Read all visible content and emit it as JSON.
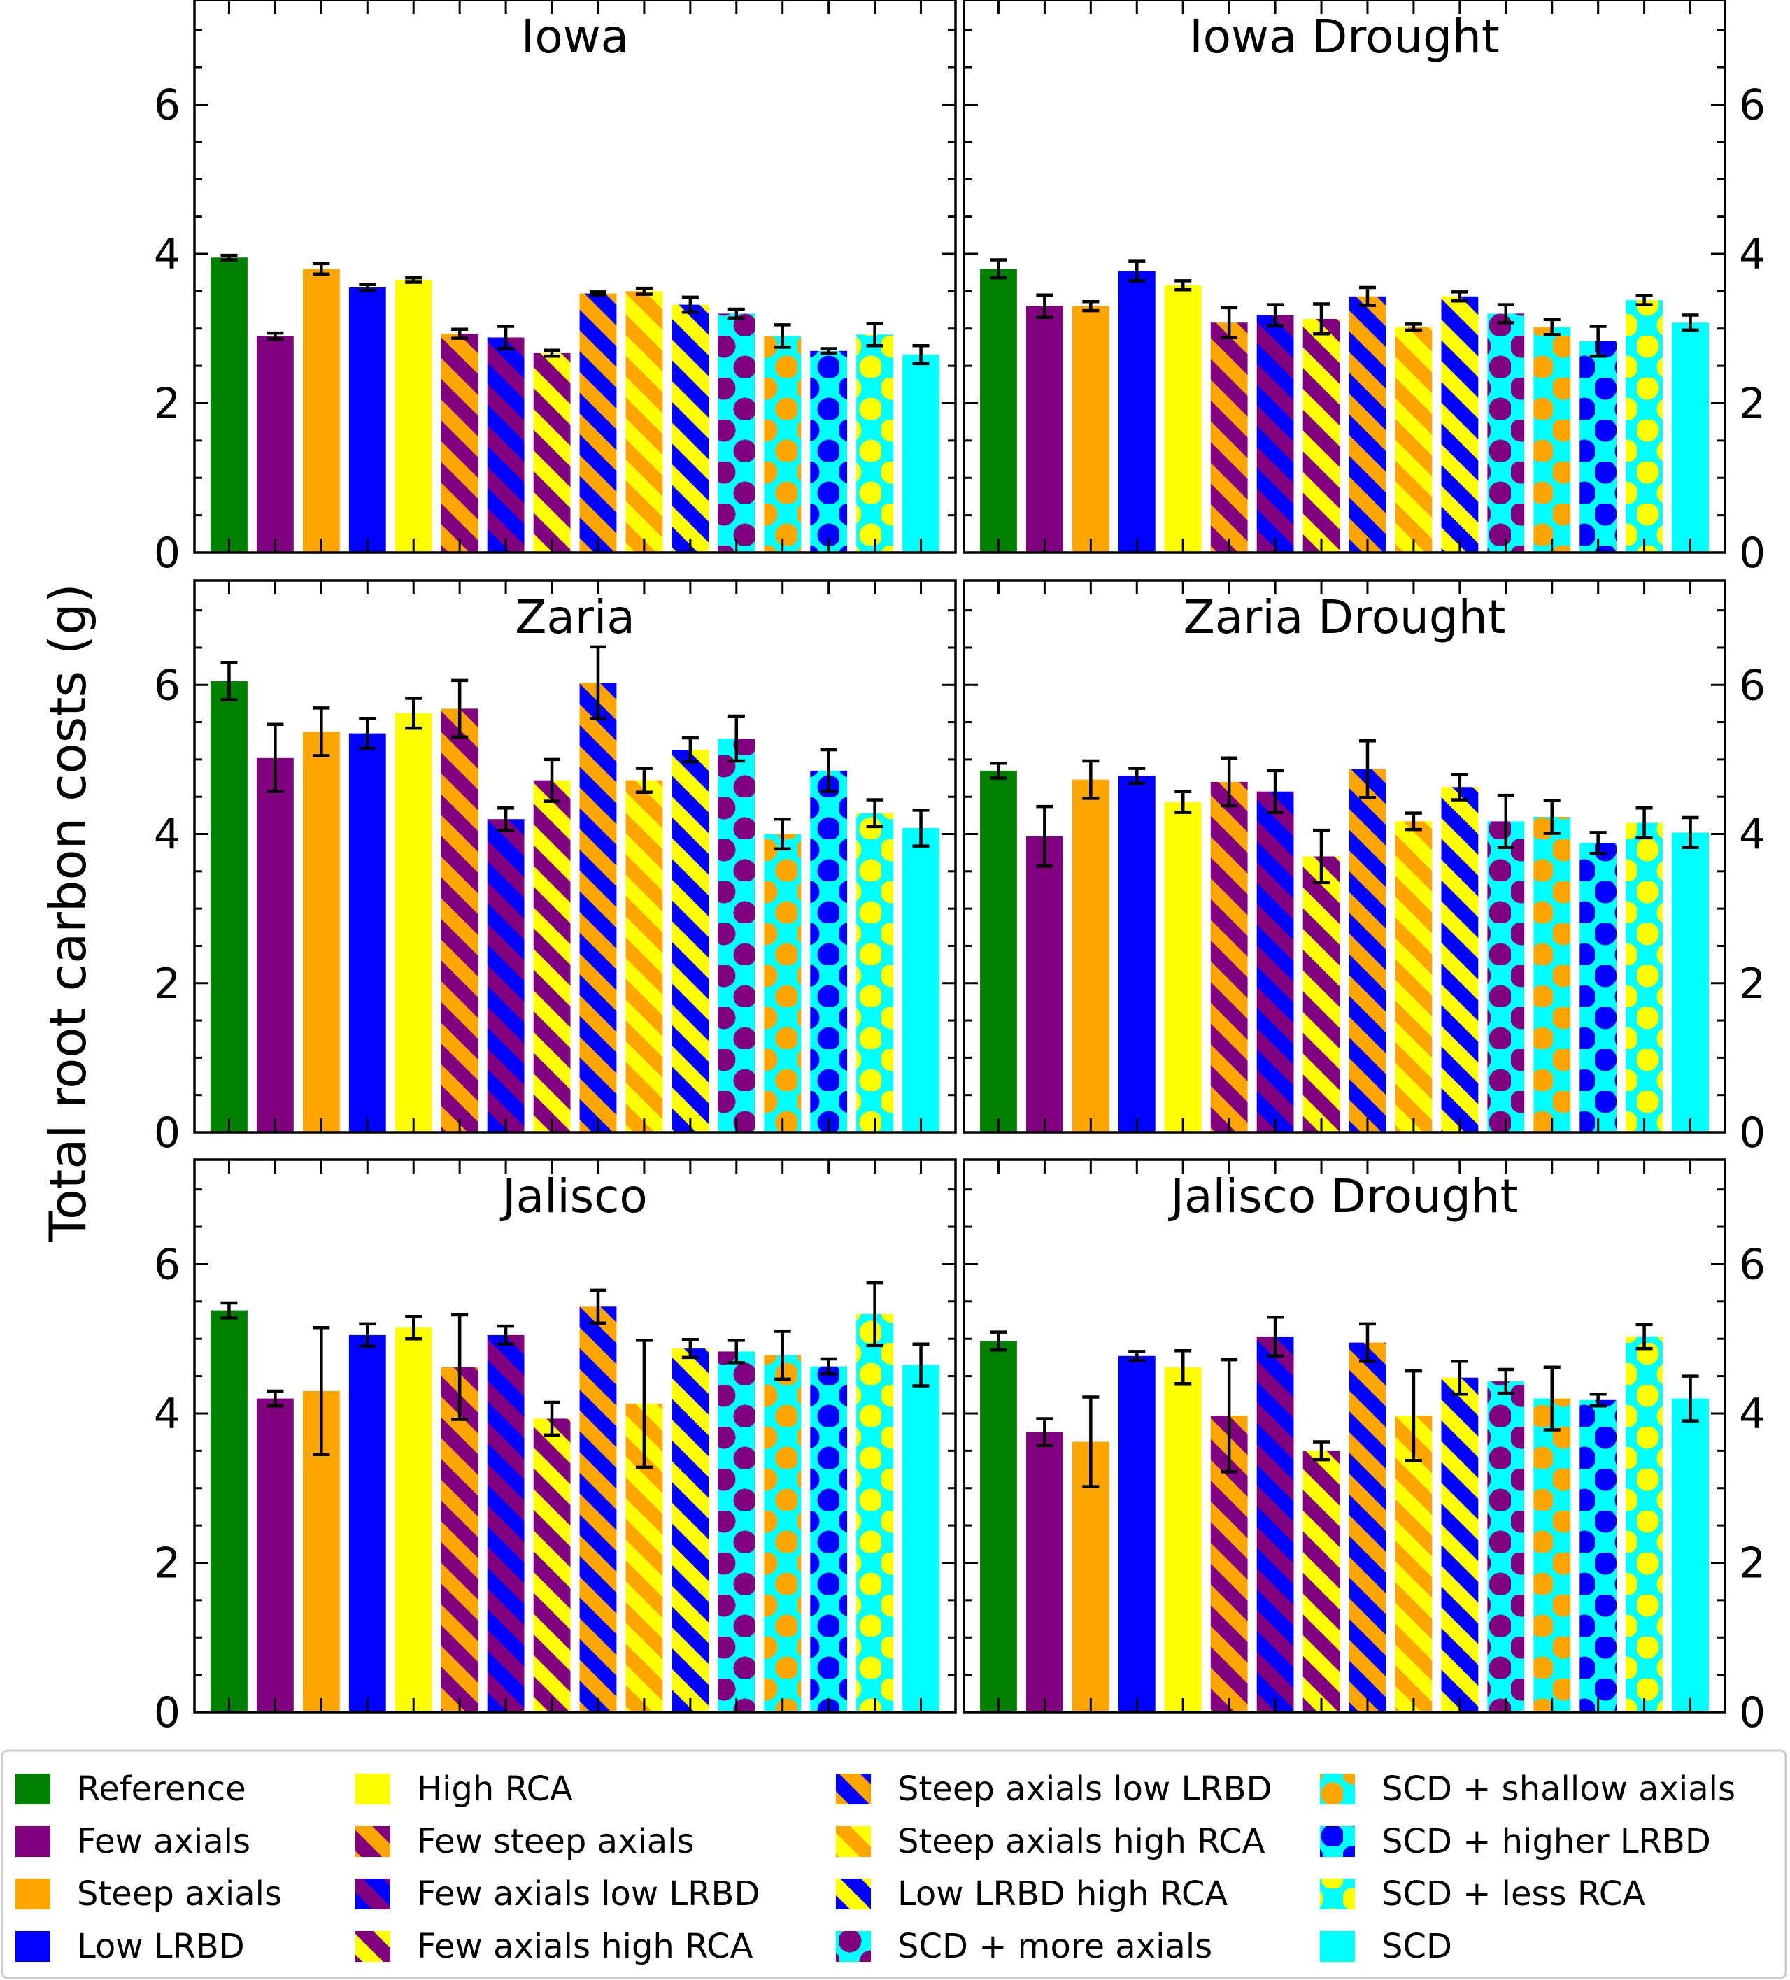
{
  "chart_data": {
    "type": "bar",
    "ylabel": "Total root carbon costs (g)",
    "ylim": [
      0,
      7.4
    ],
    "yticks": [
      0,
      2,
      4,
      6
    ],
    "legend_location": "bottom",
    "categories": [
      "Reference",
      "Few axials",
      "Steep axials",
      "Low LRBD",
      "High RCA",
      "Few steep axials",
      "Few axials low LRBD",
      "Few axials high RCA",
      "Steep axials low LRBD",
      "Steep axials high RCA",
      "Low LRBD high RCA",
      "SCD + more axials",
      "SCD + shallow axials",
      "SCD + higher LRBD",
      "SCD + less RCA",
      "SCD"
    ],
    "panels": [
      {
        "title": "Iowa",
        "values": [
          3.95,
          2.9,
          3.8,
          3.55,
          3.65,
          2.93,
          2.88,
          2.67,
          3.47,
          3.5,
          3.32,
          3.2,
          2.9,
          2.7,
          2.92,
          2.65
        ],
        "errors": [
          0.03,
          0.04,
          0.07,
          0.04,
          0.03,
          0.06,
          0.15,
          0.04,
          0.02,
          0.04,
          0.1,
          0.06,
          0.15,
          0.03,
          0.15,
          0.12
        ]
      },
      {
        "title": "Iowa Drought",
        "values": [
          3.8,
          3.3,
          3.3,
          3.77,
          3.58,
          3.08,
          3.18,
          3.13,
          3.43,
          3.02,
          3.43,
          3.2,
          3.02,
          2.83,
          3.38,
          3.08
        ],
        "errors": [
          0.12,
          0.15,
          0.06,
          0.13,
          0.06,
          0.2,
          0.14,
          0.2,
          0.12,
          0.04,
          0.06,
          0.12,
          0.1,
          0.2,
          0.06,
          0.1
        ]
      },
      {
        "title": "Zaria",
        "values": [
          6.05,
          5.02,
          5.37,
          5.35,
          5.62,
          5.68,
          4.2,
          4.72,
          6.03,
          4.72,
          5.13,
          5.28,
          4.0,
          4.85,
          4.28,
          4.08
        ],
        "errors": [
          0.25,
          0.45,
          0.32,
          0.2,
          0.2,
          0.38,
          0.15,
          0.28,
          0.48,
          0.16,
          0.16,
          0.3,
          0.2,
          0.28,
          0.18,
          0.24
        ]
      },
      {
        "title": "Zaria Drought",
        "values": [
          4.85,
          3.97,
          4.73,
          4.78,
          4.43,
          4.7,
          4.57,
          3.7,
          4.87,
          4.17,
          4.63,
          4.17,
          4.23,
          3.88,
          4.15,
          4.02
        ],
        "errors": [
          0.1,
          0.4,
          0.25,
          0.1,
          0.14,
          0.32,
          0.28,
          0.35,
          0.38,
          0.11,
          0.17,
          0.35,
          0.22,
          0.14,
          0.2,
          0.2
        ]
      },
      {
        "title": "Jalisco",
        "values": [
          5.38,
          4.2,
          4.3,
          5.05,
          5.15,
          4.62,
          5.05,
          3.93,
          5.43,
          4.13,
          4.87,
          4.83,
          4.78,
          4.63,
          5.33,
          4.65
        ],
        "errors": [
          0.1,
          0.1,
          0.85,
          0.15,
          0.15,
          0.7,
          0.12,
          0.22,
          0.22,
          0.85,
          0.12,
          0.15,
          0.32,
          0.1,
          0.42,
          0.28
        ]
      },
      {
        "title": "Jalisco Drought",
        "values": [
          4.97,
          3.75,
          3.62,
          4.77,
          4.62,
          3.97,
          5.03,
          3.5,
          4.95,
          3.97,
          4.48,
          4.43,
          4.2,
          4.18,
          5.03,
          4.2
        ],
        "errors": [
          0.12,
          0.18,
          0.6,
          0.06,
          0.22,
          0.75,
          0.26,
          0.12,
          0.25,
          0.6,
          0.22,
          0.16,
          0.42,
          0.08,
          0.16,
          0.3
        ]
      }
    ],
    "legend": [
      "Reference",
      "Few axials",
      "Steep axials",
      "Low LRBD",
      "High RCA",
      "Few steep axials",
      "Few axials low LRBD",
      "Few axials high RCA",
      "Steep axials low LRBD",
      "Steep axials high RCA",
      "Low LRBD high RCA",
      "SCD + more axials",
      "SCD + shallow axials",
      "SCD + higher LRBD",
      "SCD + less RCA",
      "SCD"
    ],
    "colors": {
      "green": "#008000",
      "purple": "#800080",
      "orange": "#ffa500",
      "blue": "#0000ff",
      "yellow": "#ffff00",
      "cyan": "#00ffff"
    },
    "fills": [
      {
        "type": "solid",
        "c1": "green"
      },
      {
        "type": "solid",
        "c1": "purple"
      },
      {
        "type": "solid",
        "c1": "orange"
      },
      {
        "type": "solid",
        "c1": "blue"
      },
      {
        "type": "solid",
        "c1": "yellow"
      },
      {
        "type": "stripe",
        "c1": "purple",
        "c2": "orange"
      },
      {
        "type": "stripe",
        "c1": "purple",
        "c2": "blue"
      },
      {
        "type": "stripe",
        "c1": "purple",
        "c2": "yellow"
      },
      {
        "type": "stripe",
        "c1": "blue",
        "c2": "orange"
      },
      {
        "type": "stripe",
        "c1": "orange",
        "c2": "yellow"
      },
      {
        "type": "stripe",
        "c1": "blue",
        "c2": "yellow"
      },
      {
        "type": "dot",
        "c1": "cyan",
        "c2": "purple"
      },
      {
        "type": "dot",
        "c1": "cyan",
        "c2": "orange"
      },
      {
        "type": "dot",
        "c1": "cyan",
        "c2": "blue"
      },
      {
        "type": "dot",
        "c1": "cyan",
        "c2": "yellow"
      },
      {
        "type": "solid",
        "c1": "cyan"
      }
    ]
  }
}
